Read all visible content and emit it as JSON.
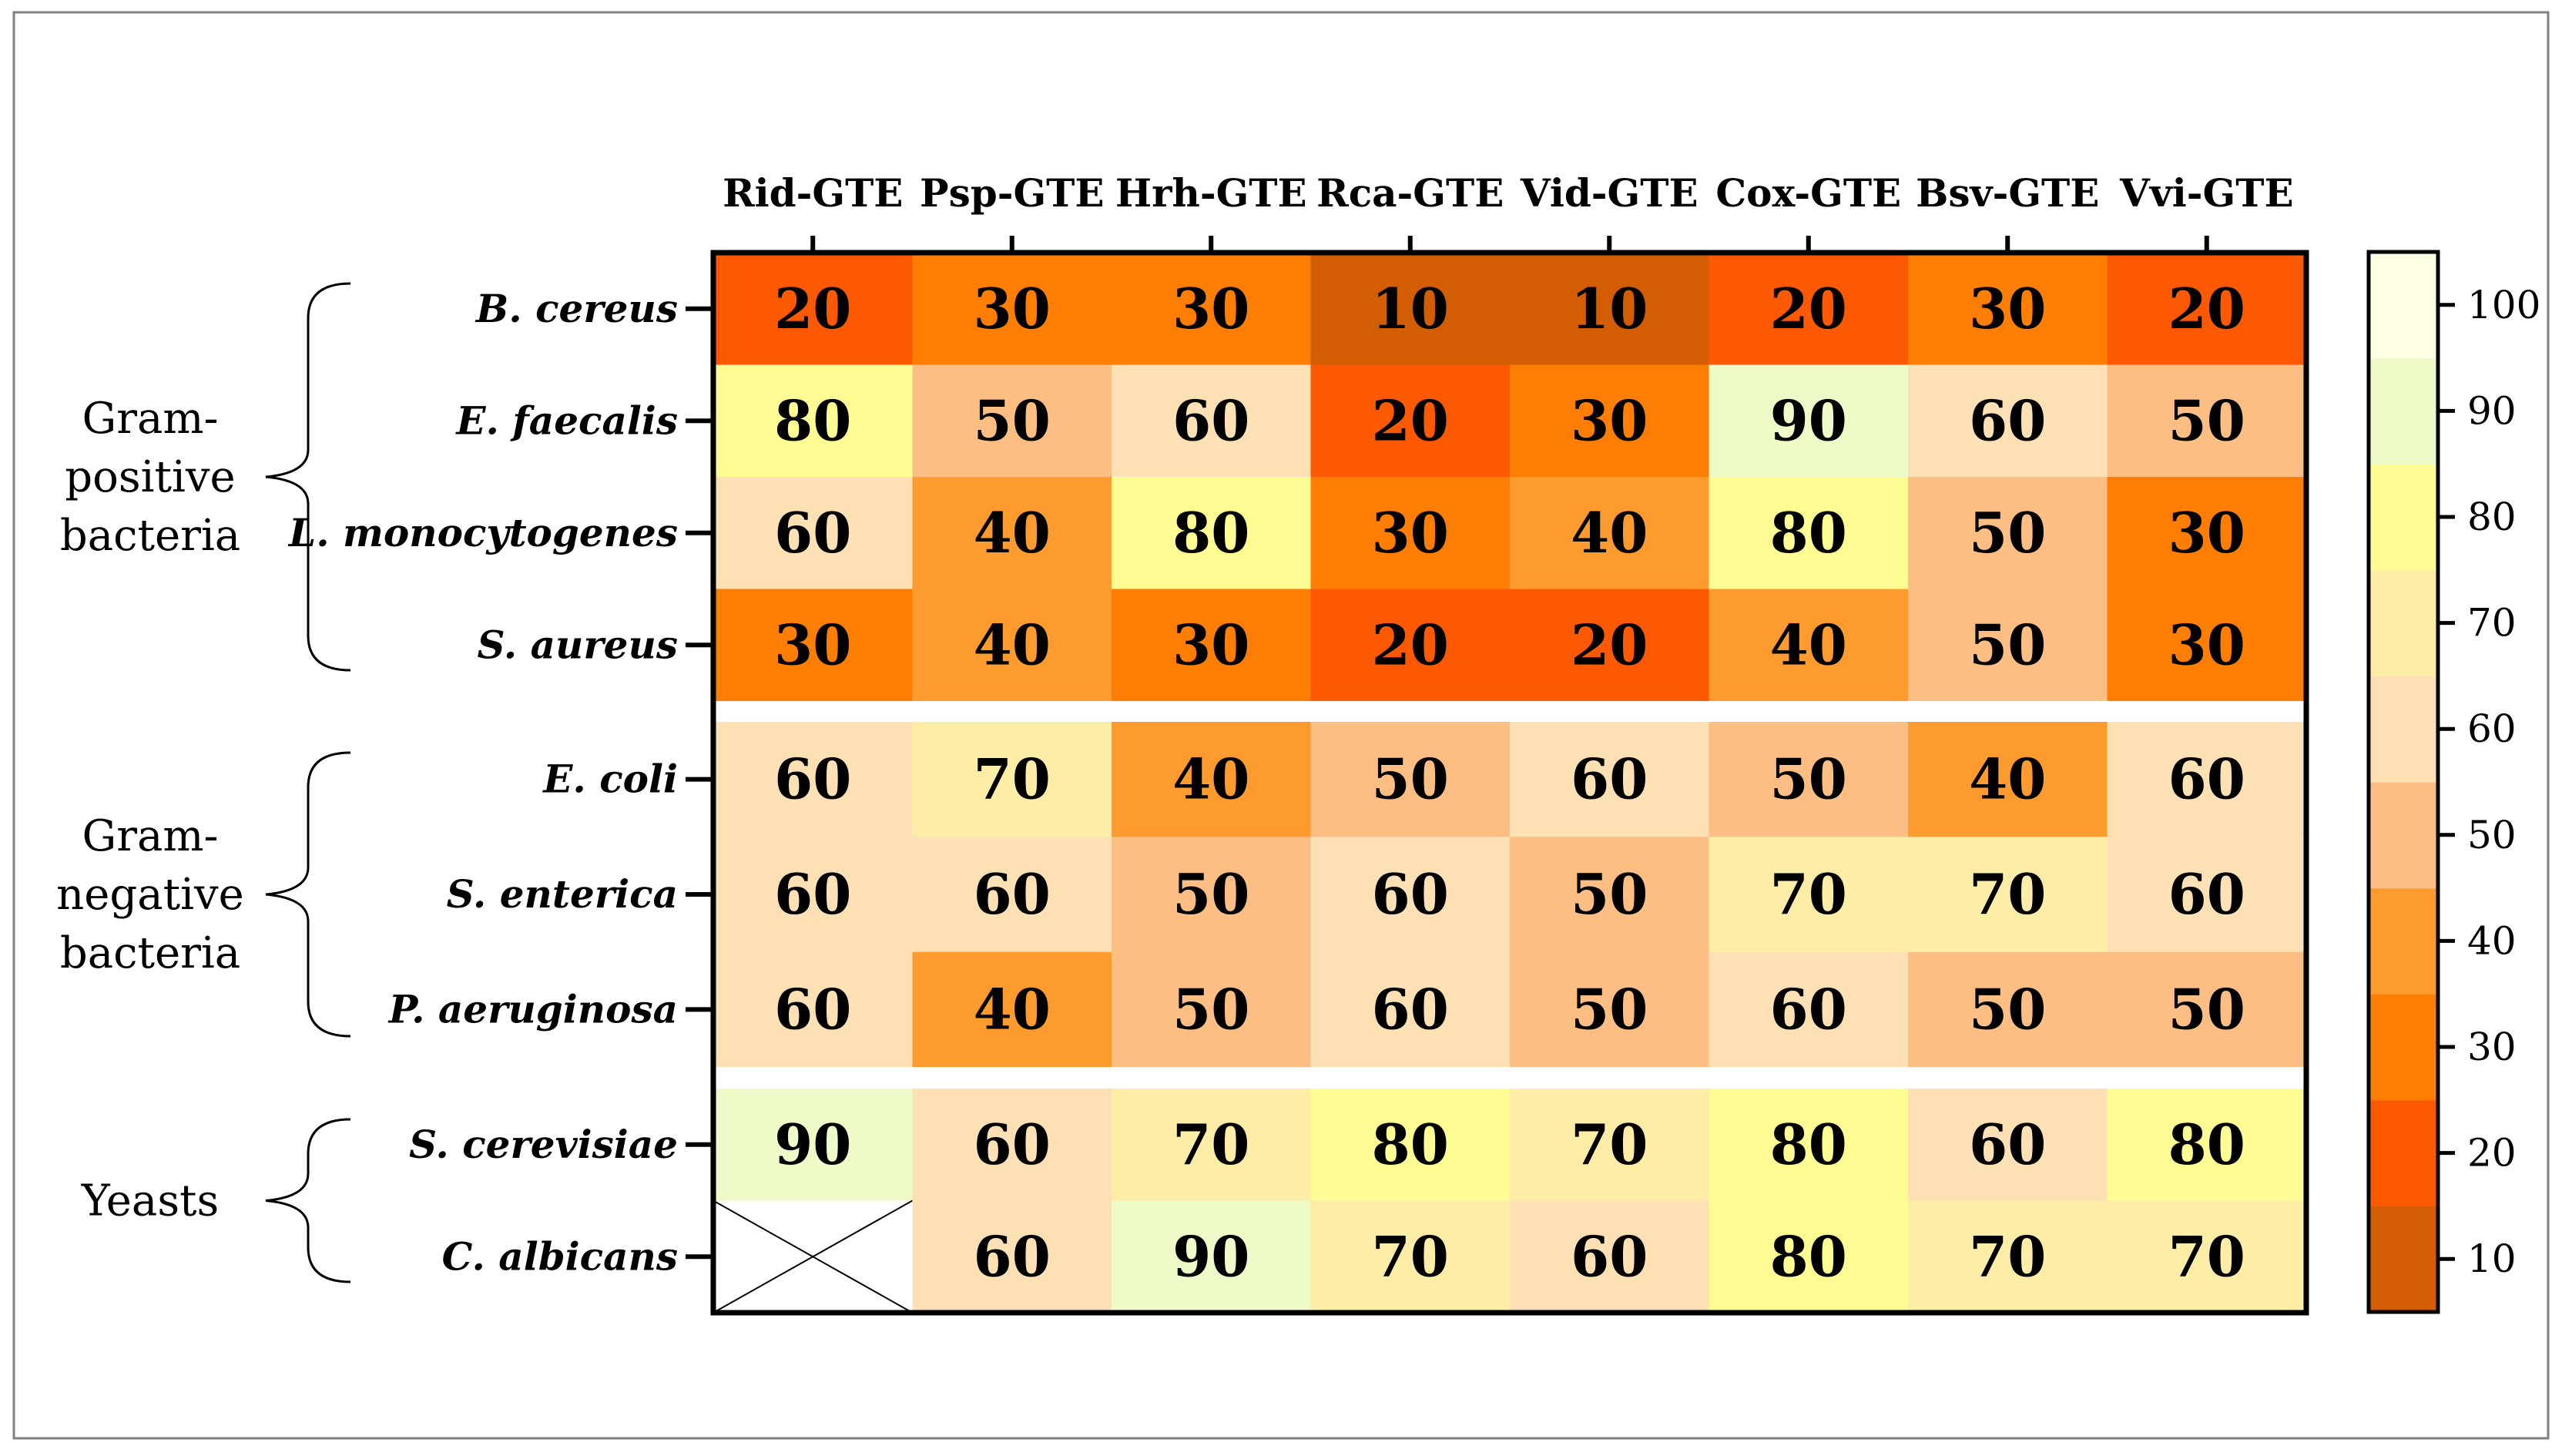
{
  "chart_data": {
    "type": "heatmap",
    "columns": [
      "Rid-GTE",
      "Psp-GTE",
      "Hrh-GTE",
      "Rca-GTE",
      "Vid-GTE",
      "Cox-GTE",
      "Bsv-GTE",
      "Vvi-GTE"
    ],
    "groups": [
      {
        "label_lines": [
          "Gram-",
          "positive",
          "bacteria"
        ],
        "rows": [
          {
            "name": "B. cereus",
            "values": [
              20,
              30,
              30,
              10,
              10,
              20,
              30,
              20
            ]
          },
          {
            "name": "E. faecalis",
            "values": [
              80,
              50,
              60,
              20,
              30,
              90,
              60,
              50
            ]
          },
          {
            "name": "L. monocytogenes",
            "values": [
              60,
              40,
              80,
              30,
              40,
              80,
              50,
              30
            ]
          },
          {
            "name": "S. aureus",
            "values": [
              30,
              40,
              30,
              20,
              20,
              40,
              50,
              30
            ]
          }
        ]
      },
      {
        "label_lines": [
          "Gram-",
          "negative",
          "bacteria"
        ],
        "rows": [
          {
            "name": "E. coli",
            "values": [
              60,
              70,
              40,
              50,
              60,
              50,
              40,
              60
            ]
          },
          {
            "name": "S. enterica",
            "values": [
              60,
              60,
              50,
              60,
              50,
              70,
              70,
              60
            ]
          },
          {
            "name": "P. aeruginosa",
            "values": [
              60,
              40,
              50,
              60,
              50,
              60,
              50,
              50
            ]
          }
        ]
      },
      {
        "label_lines": [
          "Yeasts"
        ],
        "rows": [
          {
            "name": "S. cerevisiae",
            "values": [
              90,
              60,
              70,
              80,
              70,
              80,
              60,
              80
            ]
          },
          {
            "name": "C. albicans",
            "values": [
              null,
              60,
              90,
              70,
              60,
              80,
              70,
              70
            ]
          }
        ]
      }
    ],
    "colorbar": {
      "range": [
        5,
        105
      ],
      "ticks": [
        10,
        20,
        30,
        40,
        50,
        60,
        70,
        80,
        90,
        100
      ],
      "bands": [
        {
          "from": 5,
          "to": 15,
          "color": "#d35d02"
        },
        {
          "from": 15,
          "to": 25,
          "color": "#fc5902"
        },
        {
          "from": 25,
          "to": 35,
          "color": "#fd7e02"
        },
        {
          "from": 35,
          "to": 45,
          "color": "#fd9b2e"
        },
        {
          "from": 45,
          "to": 55,
          "color": "#fdbe84"
        },
        {
          "from": 55,
          "to": 65,
          "color": "#fde0b4"
        },
        {
          "from": 65,
          "to": 75,
          "color": "#feeda7"
        },
        {
          "from": 75,
          "to": 85,
          "color": "#fefc93"
        },
        {
          "from": 85,
          "to": 95,
          "color": "#eefbc8"
        },
        {
          "from": 95,
          "to": 105,
          "color": "#fefee2"
        }
      ]
    },
    "missing_cell": "crossed-out (no value)",
    "grid": false
  }
}
